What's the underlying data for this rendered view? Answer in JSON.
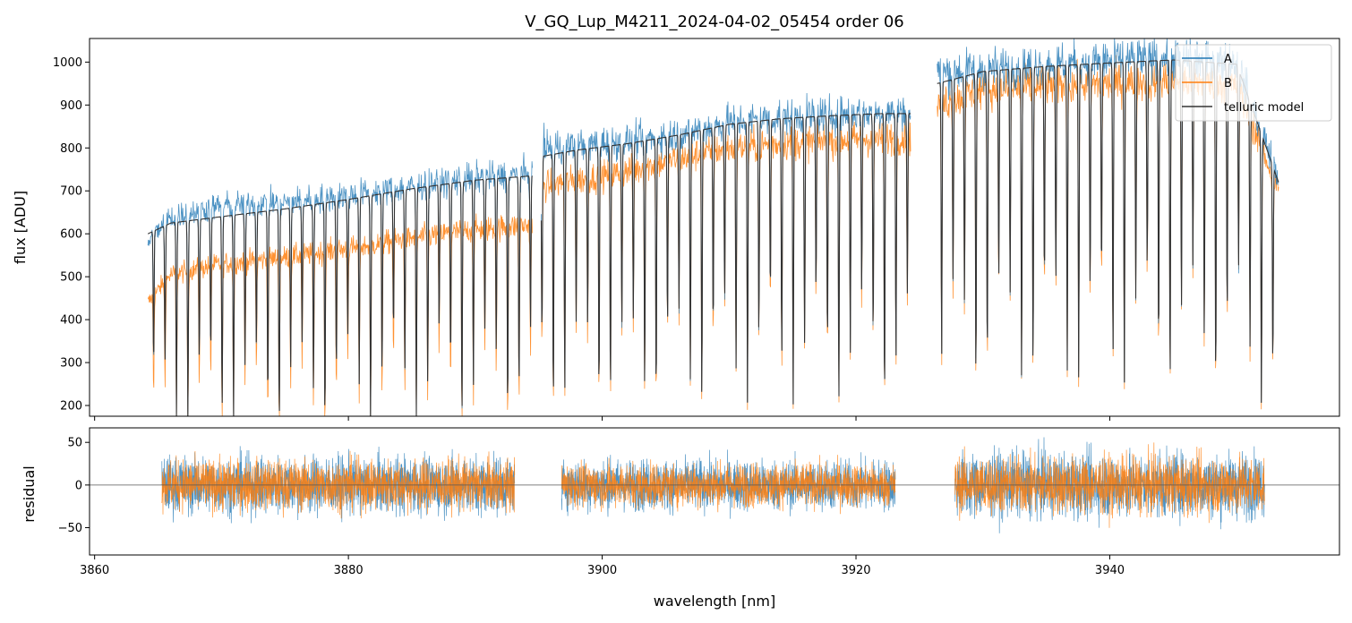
{
  "colors": {
    "A": "#1f77b4",
    "B": "#ff7f0e",
    "model": "#333333",
    "zero_line": "#555555"
  },
  "chart_data": [
    {
      "type": "line",
      "panel": "top",
      "title": "V_GQ_Lup_M4211_2024-04-02_05454  order 06",
      "xlabel": "",
      "ylabel": "flux [ADU]",
      "xlim": [
        3859.6,
        3958.1
      ],
      "ylim": [
        175,
        1055
      ],
      "xticks": [
        3860,
        3880,
        3900,
        3920,
        3940
      ],
      "xtick_labels": [
        "",
        "",
        "",
        "",
        ""
      ],
      "yticks": [
        200,
        300,
        400,
        500,
        600,
        700,
        800,
        900,
        1000
      ],
      "ytick_labels": [
        "200",
        "300",
        "400",
        "500",
        "600",
        "700",
        "800",
        "900",
        "1000"
      ],
      "legend": {
        "placement": "top-right",
        "entries": [
          "A",
          "B",
          "telluric model"
        ]
      },
      "series": [
        {
          "name": "A",
          "segments": [
            {
              "x": [
                3864.2,
                3866,
                3870,
                3875,
                3880,
                3885,
                3890,
                3894.5
              ],
              "y": [
                580,
                640,
                665,
                675,
                690,
                710,
                730,
                740
              ]
            },
            {
              "x": [
                3895.2,
                3898,
                3902,
                3906,
                3910,
                3914,
                3918,
                3922,
                3924.3
              ],
              "y": [
                800,
                808,
                815,
                832,
                860,
                872,
                878,
                883,
                885
              ]
            },
            {
              "x": [
                3926.4,
                3930,
                3935,
                3940,
                3945,
                3950,
                3953.3
              ],
              "y": [
                975,
                985,
                995,
                1005,
                1010,
                1000,
                730
              ]
            }
          ]
        },
        {
          "name": "B",
          "segments": [
            {
              "x": [
                3864.2,
                3866,
                3870,
                3875,
                3880,
                3885,
                3890,
                3894.5
              ],
              "y": [
                440,
                505,
                530,
                545,
                565,
                590,
                610,
                620
              ]
            },
            {
              "x": [
                3895.2,
                3898,
                3902,
                3906,
                3910,
                3914,
                3918,
                3922,
                3924.3
              ],
              "y": [
                710,
                725,
                745,
                775,
                800,
                810,
                818,
                822,
                825
              ]
            },
            {
              "x": [
                3926.4,
                3930,
                3935,
                3940,
                3945,
                3950,
                3953.3
              ],
              "y": [
                900,
                935,
                945,
                950,
                958,
                945,
                700
              ]
            }
          ]
        },
        {
          "name": "telluric model",
          "segments": [
            {
              "x": [
                3864.2,
                3866,
                3870,
                3875,
                3880,
                3885,
                3890,
                3894.5
              ],
              "y": [
                600,
                625,
                640,
                658,
                680,
                705,
                725,
                735
              ]
            },
            {
              "x": [
                3895.2,
                3898,
                3902,
                3906,
                3910,
                3914,
                3918,
                3922,
                3924.3
              ],
              "y": [
                780,
                795,
                810,
                830,
                855,
                868,
                875,
                880,
                880
              ]
            },
            {
              "x": [
                3926.4,
                3930,
                3935,
                3940,
                3945,
                3950,
                3953.3
              ],
              "y": [
                950,
                978,
                990,
                998,
                1005,
                995,
                720
              ]
            }
          ]
        }
      ]
    },
    {
      "type": "line",
      "panel": "bottom",
      "title": "",
      "xlabel": "wavelength [nm]",
      "ylabel": "residual",
      "xlim": [
        3859.6,
        3958.1
      ],
      "ylim": [
        -82,
        67
      ],
      "xticks": [
        3860,
        3880,
        3900,
        3920,
        3940
      ],
      "xtick_labels": [
        "3860",
        "3880",
        "3900",
        "3920",
        "3940"
      ],
      "yticks": [
        -50,
        0,
        50
      ],
      "ytick_labels": [
        "−50",
        "0",
        "50"
      ],
      "zero_line": 0,
      "series": [
        {
          "name": "A",
          "segments": [
            {
              "x_range": [
                3865.3,
                3893.1
              ],
              "scatter": 40
            },
            {
              "x_range": [
                3896.8,
                3923.1
              ],
              "scatter": 35
            },
            {
              "x_range": [
                3927.8,
                3952.2
              ],
              "scatter": 45
            }
          ]
        },
        {
          "name": "B",
          "segments": [
            {
              "x_range": [
                3865.3,
                3893.1
              ],
              "scatter": 35
            },
            {
              "x_range": [
                3896.8,
                3923.1
              ],
              "scatter": 30
            },
            {
              "x_range": [
                3927.8,
                3952.2
              ],
              "scatter": 40
            }
          ]
        }
      ]
    }
  ]
}
